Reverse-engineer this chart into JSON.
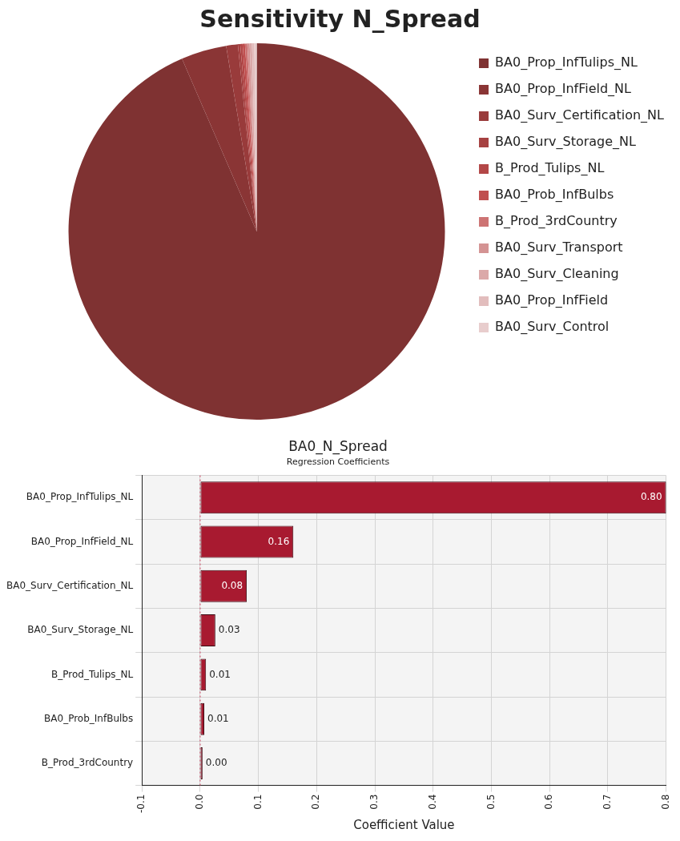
{
  "chart_data": [
    {
      "type": "pie",
      "title": "Sensitivity N_Spread",
      "legend": "right",
      "categories": [
        "BA0_Prop_InfTulips_NL",
        "BA0_Prop_InfField_NL",
        "BA0_Surv_Certification_NL",
        "BA0_Surv_Storage_NL",
        "B_Prod_Tulips_NL",
        "BA0_Prob_InfBulbs",
        "B_Prod_3rdCountry",
        "BA0_Surv_Transport",
        "BA0_Surv_Cleaning",
        "BA0_Prop_InfField",
        "BA0_Surv_Control"
      ],
      "values": [
        93.5,
        3.9,
        1.0,
        0.2,
        0.2,
        0.2,
        0.2,
        0.2,
        0.2,
        0.2,
        0.2
      ],
      "colors": [
        "#7f3232",
        "#8a3535",
        "#993b3b",
        "#a64141",
        "#b34747",
        "#c04e4e",
        "#cd7373",
        "#d49393",
        "#dba9a9",
        "#e2bdbd",
        "#e8cdcd"
      ]
    },
    {
      "type": "bar",
      "orientation": "horizontal",
      "title": "BA0_N_Spread",
      "subtitle": "Regression Coefficients",
      "xlabel": "Coefficient Value",
      "categories": [
        "BA0_Prop_InfTulips_NL",
        "BA0_Prop_InfField_NL",
        "BA0_Surv_Certification_NL",
        "BA0_Surv_Storage_NL",
        "B_Prod_Tulips_NL",
        "BA0_Prob_InfBulbs",
        "B_Prod_3rdCountry"
      ],
      "values": [
        0.8,
        0.16,
        0.08,
        0.026,
        0.01,
        0.007,
        0.004
      ],
      "value_labels": [
        "0.80",
        "0.16",
        "0.08",
        "0.03",
        "0.01",
        "0.01",
        "0.00"
      ],
      "color": "#a81a30",
      "xlim": [
        -0.1,
        0.8
      ],
      "xticks": [
        -0.1,
        {
          "value": 0,
          "label": "0.0"
        },
        0.1,
        0.2,
        0.3,
        0.4,
        0.5,
        0.6,
        0.7,
        0.8
      ],
      "grid": true,
      "legend": false,
      "ref_lines": [
        {
          "axis": "x",
          "value": 0,
          "color": "#d04060",
          "line_style": "dotted"
        }
      ]
    }
  ]
}
